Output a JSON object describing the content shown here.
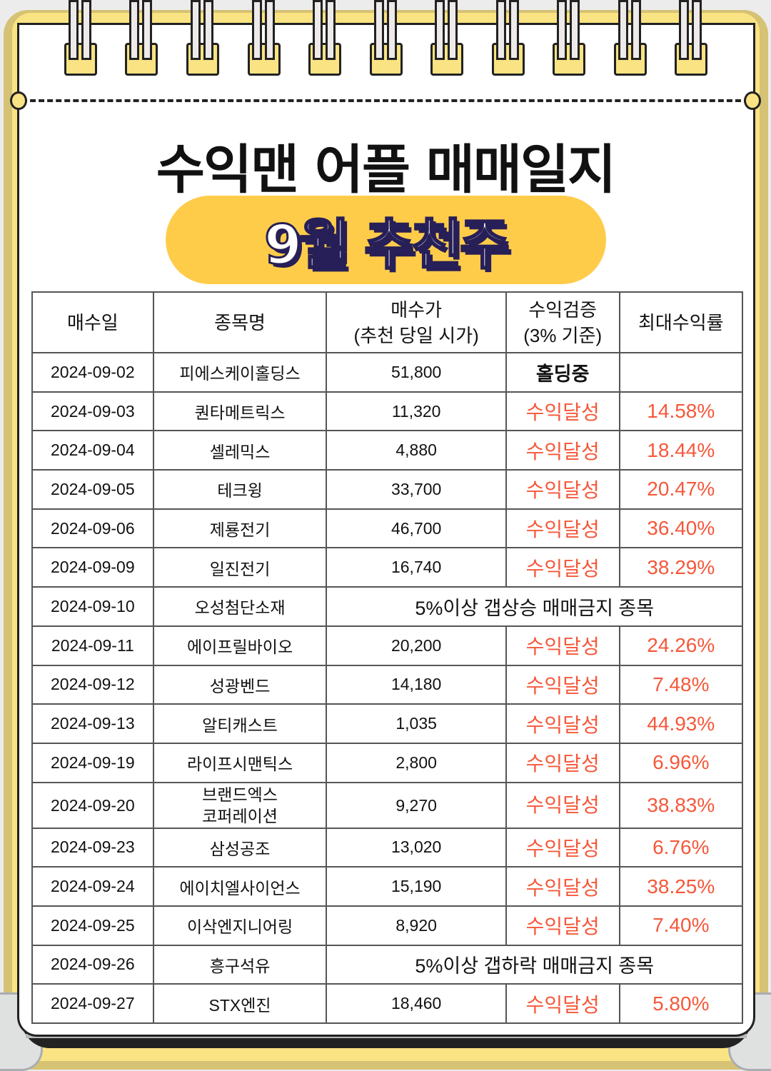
{
  "title": "수익맨 어플 매매일지",
  "subtitle": "9월 추천주",
  "colors": {
    "accent_red": "#f5583a",
    "pill": "#ffcc4a",
    "frame": "#fae383"
  },
  "table": {
    "headers": [
      "매수일",
      "종목명",
      "매수가\n(추천 당일 시가)",
      "수익검증\n(3% 기준)",
      "최대수익률"
    ],
    "rows": [
      {
        "date": "2024-09-02",
        "name": "피에스케이홀딩스",
        "price": "51,800",
        "status": "홀딩중",
        "rate": ""
      },
      {
        "date": "2024-09-03",
        "name": "퀀타메트릭스",
        "price": "11,320",
        "status": "수익달성",
        "rate": "14.58%"
      },
      {
        "date": "2024-09-04",
        "name": "셀레믹스",
        "price": "4,880",
        "status": "수익달성",
        "rate": "18.44%"
      },
      {
        "date": "2024-09-05",
        "name": "테크윙",
        "price": "33,700",
        "status": "수익달성",
        "rate": "20.47%"
      },
      {
        "date": "2024-09-06",
        "name": "제룡전기",
        "price": "46,700",
        "status": "수익달성",
        "rate": "36.40%"
      },
      {
        "date": "2024-09-09",
        "name": "일진전기",
        "price": "16,740",
        "status": "수익달성",
        "rate": "38.29%"
      },
      {
        "date": "2024-09-10",
        "name": "오성첨단소재",
        "note": "5%이상 갭상승 매매금지 종목"
      },
      {
        "date": "2024-09-11",
        "name": "에이프릴바이오",
        "price": "20,200",
        "status": "수익달성",
        "rate": "24.26%"
      },
      {
        "date": "2024-09-12",
        "name": "성광벤드",
        "price": "14,180",
        "status": "수익달성",
        "rate": "7.48%"
      },
      {
        "date": "2024-09-13",
        "name": "알티캐스트",
        "price": "1,035",
        "status": "수익달성",
        "rate": "44.93%"
      },
      {
        "date": "2024-09-19",
        "name": "라이프시맨틱스",
        "price": "2,800",
        "status": "수익달성",
        "rate": "6.96%"
      },
      {
        "date": "2024-09-20",
        "name": "브랜드엑스\n코퍼레이션",
        "price": "9,270",
        "status": "수익달성",
        "rate": "38.83%"
      },
      {
        "date": "2024-09-23",
        "name": "삼성공조",
        "price": "13,020",
        "status": "수익달성",
        "rate": "6.76%"
      },
      {
        "date": "2024-09-24",
        "name": "에이치엘사이언스",
        "price": "15,190",
        "status": "수익달성",
        "rate": "38.25%"
      },
      {
        "date": "2024-09-25",
        "name": "이삭엔지니어링",
        "price": "8,920",
        "status": "수익달성",
        "rate": "7.40%"
      },
      {
        "date": "2024-09-26",
        "name": "흥구석유",
        "note": "5%이상 갭하락 매매금지 종목"
      },
      {
        "date": "2024-09-27",
        "name": "STX엔진",
        "price": "18,460",
        "status": "수익달성",
        "rate": "5.80%"
      }
    ]
  }
}
